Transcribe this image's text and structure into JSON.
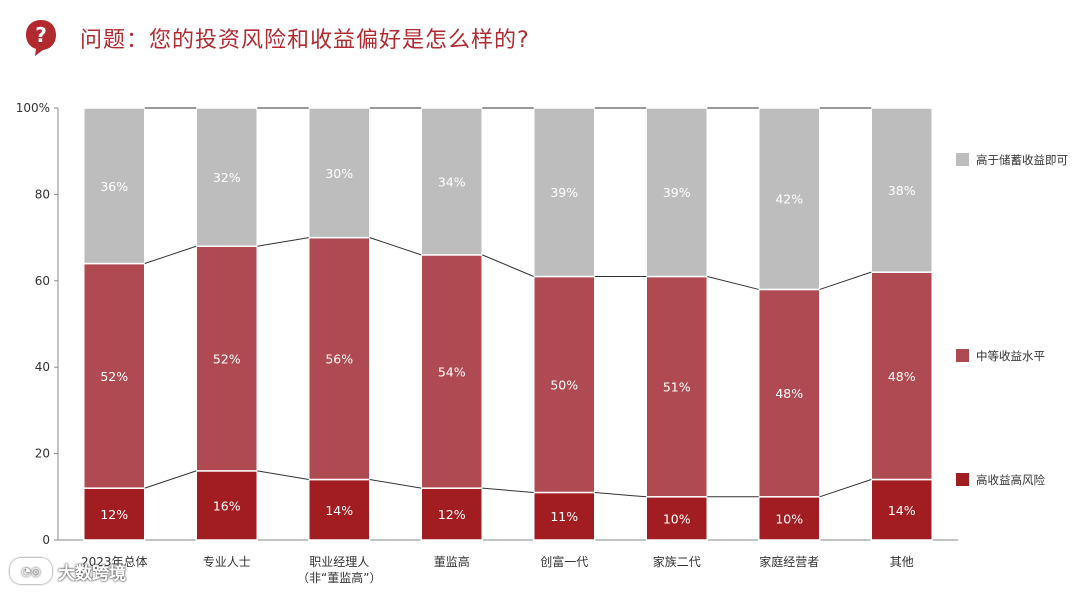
{
  "header": {
    "title": "问题：您的投资风险和收益偏好是怎么样的?",
    "icon": "question-bubble-icon",
    "accent": "#b02a30"
  },
  "watermark": {
    "text": "大数跨境",
    "icon": "logo-icon"
  },
  "chart_data": {
    "type": "bar",
    "stacked": true,
    "categories": [
      [
        "2023年总体"
      ],
      [
        "专业人士"
      ],
      [
        "职业经理人",
        "（非“董监高”）"
      ],
      [
        "董监高"
      ],
      [
        "创富一代"
      ],
      [
        "家族二代"
      ],
      [
        "家庭经营者"
      ],
      [
        "其他"
      ]
    ],
    "series": [
      {
        "name": "高收益高风险",
        "color": "#a11d22",
        "values": [
          12,
          16,
          14,
          12,
          11,
          10,
          10,
          14
        ]
      },
      {
        "name": "中等收益水平",
        "color": "#b04a52",
        "values": [
          52,
          52,
          56,
          54,
          50,
          51,
          48,
          48
        ]
      },
      {
        "name": "高于储蓄收益即可",
        "color": "#bdbdbd",
        "values": [
          36,
          32,
          30,
          34,
          39,
          39,
          42,
          38
        ]
      }
    ],
    "y_ticks": [
      "0",
      "20",
      "40",
      "60",
      "80",
      "100%"
    ],
    "ylim": [
      0,
      100
    ],
    "legend": "right",
    "grid": false,
    "connectors": true
  }
}
